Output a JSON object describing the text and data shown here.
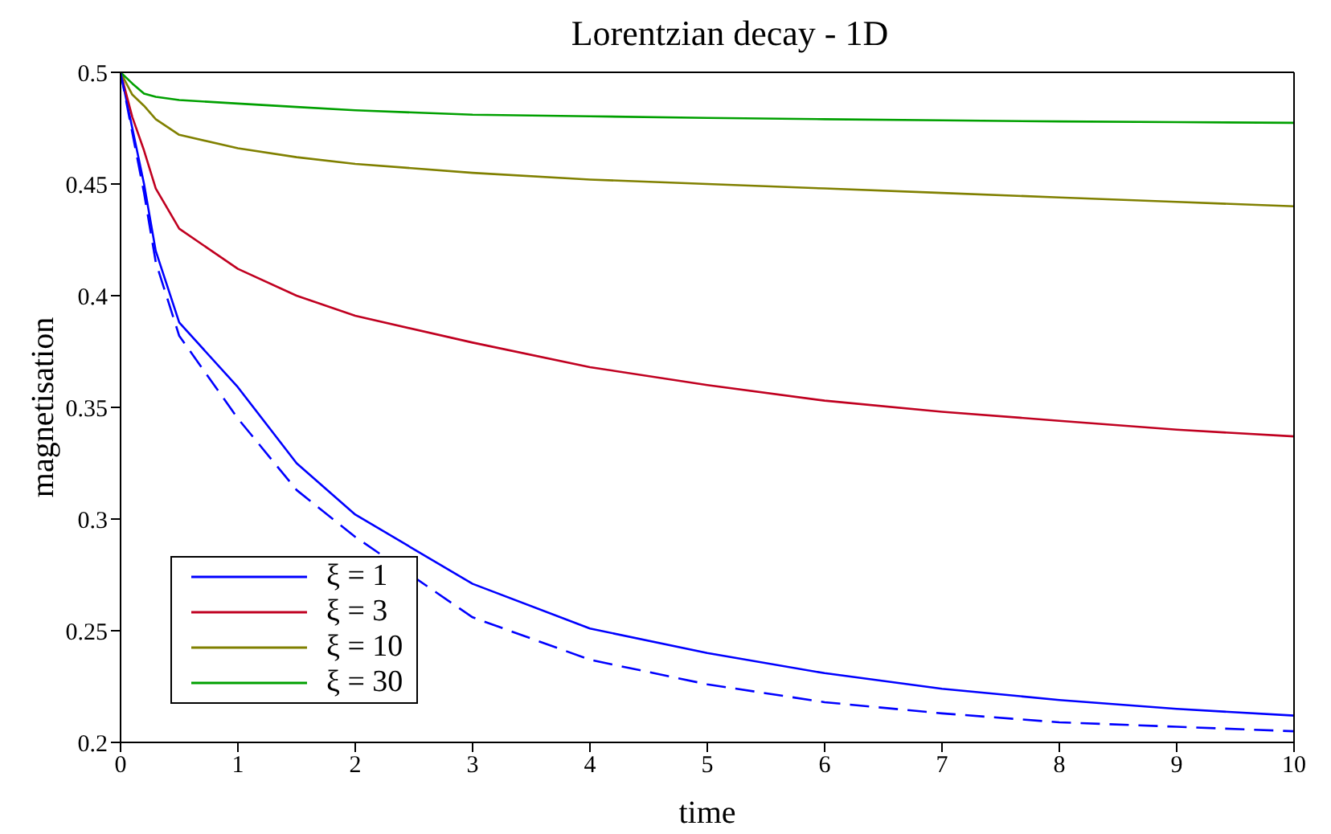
{
  "chart_data": {
    "type": "line",
    "title": "Lorentzian decay - 1D",
    "xlabel": "time",
    "ylabel": "magnetisation",
    "x": [
      0,
      0.1,
      0.2,
      0.3,
      0.5,
      1,
      1.5,
      2,
      3,
      4,
      5,
      6,
      7,
      8,
      9,
      10
    ],
    "series": [
      {
        "name": "ξ = 1",
        "color": "#0000ff",
        "values": [
          0.5,
          0.475,
          0.45,
          0.42,
          0.388,
          0.359,
          0.325,
          0.302,
          0.271,
          0.251,
          0.24,
          0.231,
          0.224,
          0.219,
          0.215,
          0.212
        ]
      },
      {
        "name": "ξ = 3",
        "color": "#c00020",
        "values": [
          0.5,
          0.48,
          0.465,
          0.448,
          0.43,
          0.412,
          0.4,
          0.391,
          0.379,
          0.368,
          0.36,
          0.353,
          0.348,
          0.344,
          0.34,
          0.337
        ]
      },
      {
        "name": "ξ = 10",
        "color": "#808000",
        "values": [
          0.5,
          0.49,
          0.485,
          0.479,
          0.472,
          0.466,
          0.462,
          0.459,
          0.455,
          0.452,
          0.45,
          0.448,
          0.446,
          0.444,
          0.442,
          0.44
        ]
      },
      {
        "name": "ξ = 30",
        "color": "#00a000",
        "values": [
          0.5,
          0.495,
          0.4905,
          0.489,
          0.4876,
          0.486,
          0.4845,
          0.483,
          0.481,
          0.4803,
          0.4796,
          0.479,
          0.4785,
          0.478,
          0.4777,
          0.4774
        ]
      },
      {
        "color": "#0000ff",
        "line_style": "dashed",
        "values": [
          0.5,
          0.473,
          0.446,
          0.415,
          0.382,
          0.345,
          0.313,
          0.292,
          0.256,
          0.237,
          0.226,
          0.218,
          0.213,
          0.209,
          0.207,
          0.205
        ]
      }
    ],
    "xlim": [
      0,
      10
    ],
    "xticks": [
      0,
      1,
      2,
      3,
      4,
      5,
      6,
      7,
      8,
      9,
      10
    ],
    "ylim": [
      0.2,
      0.5
    ],
    "yticks": [
      0.2,
      0.25,
      0.3,
      0.35,
      0.4,
      0.45,
      0.5
    ],
    "grid": false,
    "legend": "bottom left",
    "marker": "none",
    "line_style": "solid"
  }
}
